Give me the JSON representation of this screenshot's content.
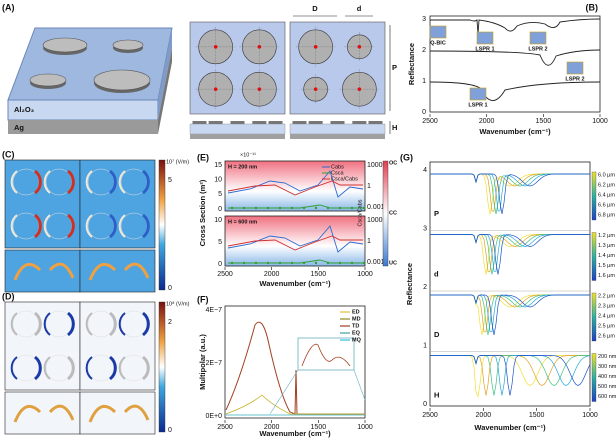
{
  "panel_a": {
    "label": "(A)",
    "oxide": "Al₂O₃",
    "metal": "Ag",
    "D": "D",
    "d": "d",
    "P": "P",
    "H": "H"
  },
  "panel_b": {
    "label": "(B)",
    "ylabel": "Reflectance",
    "yticks": [
      "0",
      "1",
      "2",
      "3"
    ],
    "xticks": [
      "2500",
      "2000",
      "1500",
      "1000"
    ],
    "xlabel": "Wavenumber (cm⁻¹)",
    "insets": [
      "Q-BIC",
      "LSPR 1",
      "LSPR 2",
      "LSPR 2",
      "LSPR 1"
    ]
  },
  "panel_c": {
    "label": "(C)",
    "unit": "10⁷ (V/m)",
    "max": "5",
    "min": "0"
  },
  "panel_d": {
    "label": "(D)",
    "unit": "10⁸ (V/m)",
    "max": "2",
    "min": "0"
  },
  "panel_e": {
    "label": "(E)",
    "scale": "×10⁻¹¹",
    "ylabel": "Cross Section (m²)",
    "y2label": "Csca/Cabs",
    "legend": [
      "Cabs",
      "Csca",
      "Csca/Cabs"
    ],
    "top": {
      "note": "H = 200 nm",
      "yticks": [
        "0",
        "5",
        "10",
        "15"
      ],
      "y2ticks": [
        "1000",
        "1",
        "0.001"
      ]
    },
    "bottom": {
      "note": "H = 600 nm",
      "yticks": [
        "0",
        "5",
        "10"
      ],
      "y2ticks": [
        "1000",
        "1",
        "0.001"
      ]
    },
    "xticks": [
      "2500",
      "2000",
      "1500",
      "1000"
    ],
    "xlabel": "Wavenumber (cm⁻¹)",
    "regimes": [
      "OC",
      "CC",
      "UC"
    ]
  },
  "panel_f": {
    "label": "(F)",
    "ylabel": "Multipolar (a.u.)",
    "yticks": [
      "0E+0",
      "2E−7",
      "4E−7"
    ],
    "legend": [
      "ED",
      "MD",
      "TD",
      "EQ",
      "MQ"
    ],
    "xticks": [
      "2500",
      "2000",
      "1500",
      "1000"
    ],
    "xlabel": "Wavenumber (cm⁻¹)"
  },
  "panel_g": {
    "label": "(G)",
    "ylabel": "Reflectance",
    "yticks": [
      "0",
      "1",
      "2",
      "3",
      "4"
    ],
    "xticks": [
      "2500",
      "2000",
      "1500",
      "1000"
    ],
    "xlabel": "Wavenumber (cm⁻¹)",
    "groups": [
      {
        "name": "P",
        "legend": [
          "6.0 µm",
          "6.2 µm",
          "6.4 µm",
          "6.6 µm",
          "6.8 µm"
        ]
      },
      {
        "name": "d",
        "legend": [
          "1.2 µm",
          "1.3 µm",
          "1.4 µm",
          "1.5 µm",
          "1.6 µm"
        ]
      },
      {
        "name": "D",
        "legend": [
          "2.2 µm",
          "2.3 µm",
          "2.4 µm",
          "2.5 µm",
          "2.6 µm"
        ]
      },
      {
        "name": "H",
        "legend": [
          "200 nm",
          "300 nm",
          "400 nm",
          "500 nm",
          "600 nm"
        ]
      }
    ]
  }
}
